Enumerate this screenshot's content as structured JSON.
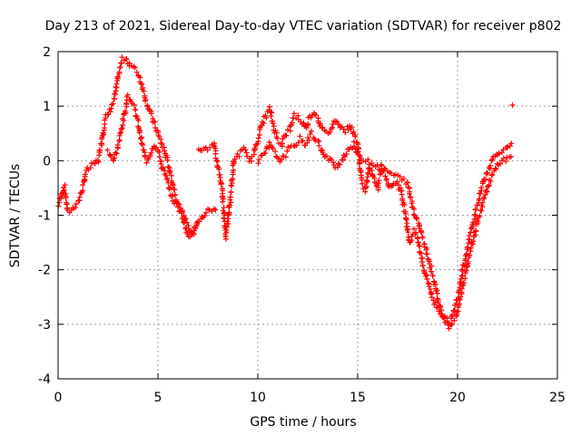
{
  "chart_data": {
    "type": "scatter",
    "title": "Day 213 of 2021, Sidereal Day-to-day VTEC variation (SDTVAR) for receiver p802",
    "xlabel": "GPS time / hours",
    "ylabel": "SDTVAR / TECUs",
    "xlim": [
      0,
      25
    ],
    "ylim": [
      -4,
      2
    ],
    "x_ticks": [
      0,
      5,
      10,
      15,
      20,
      25
    ],
    "y_ticks": [
      -4,
      -3,
      -2,
      -1,
      0,
      1,
      2
    ],
    "x_tick_labels": [
      "0",
      "5",
      "10",
      "15",
      "20",
      "25"
    ],
    "y_tick_labels": [
      "-4",
      "-3",
      "-2",
      "-1",
      "0",
      "1",
      "2"
    ],
    "grid": true,
    "marker": "+",
    "marker_color": "#ff0000",
    "series": [
      {
        "name": "SDTVAR",
        "trace_a": [
          [
            0.0,
            -0.85
          ],
          [
            0.2,
            -0.6
          ],
          [
            0.3,
            -0.45
          ],
          [
            0.5,
            -0.95
          ],
          [
            0.8,
            -0.85
          ],
          [
            1.0,
            -0.75
          ],
          [
            1.2,
            -0.55
          ],
          [
            1.4,
            -0.2
          ],
          [
            1.7,
            -0.1
          ],
          [
            2.0,
            0.0
          ],
          [
            2.2,
            0.4
          ],
          [
            2.4,
            0.8
          ],
          [
            2.6,
            0.9
          ],
          [
            2.8,
            1.1
          ],
          [
            3.0,
            1.55
          ],
          [
            3.2,
            1.85
          ],
          [
            3.4,
            1.9
          ],
          [
            3.6,
            1.75
          ],
          [
            3.8,
            1.7
          ],
          [
            4.0,
            1.6
          ],
          [
            4.2,
            1.4
          ],
          [
            4.4,
            1.1
          ],
          [
            4.6,
            0.9
          ],
          [
            4.8,
            0.7
          ],
          [
            5.0,
            0.5
          ],
          [
            5.2,
            0.3
          ],
          [
            5.4,
            0.1
          ],
          [
            5.6,
            -0.2
          ],
          [
            5.8,
            -0.5
          ],
          [
            6.0,
            -0.8
          ],
          [
            6.2,
            -1.0
          ],
          [
            6.4,
            -1.25
          ],
          [
            6.6,
            -1.4
          ],
          [
            6.8,
            -1.3
          ],
          [
            7.0,
            -1.15
          ],
          [
            7.2,
            -1.05
          ],
          [
            7.4,
            -0.95
          ],
          [
            7.6,
            -0.9
          ],
          [
            7.8,
            -0.9
          ],
          [
            8.0,
            -0.95
          ]
        ],
        "trace_b": [
          [
            2.5,
            0.2
          ],
          [
            2.8,
            0.0
          ],
          [
            3.0,
            0.3
          ],
          [
            3.2,
            0.6
          ],
          [
            3.5,
            1.2
          ],
          [
            3.8,
            1.0
          ],
          [
            4.0,
            0.7
          ],
          [
            4.2,
            0.3
          ],
          [
            4.4,
            0.0
          ],
          [
            4.6,
            0.1
          ],
          [
            4.8,
            0.3
          ],
          [
            5.0,
            0.2
          ],
          [
            5.2,
            -0.1
          ],
          [
            5.4,
            -0.3
          ],
          [
            5.6,
            -0.55
          ],
          [
            5.8,
            -0.75
          ],
          [
            6.0,
            -0.85
          ],
          [
            6.2,
            -0.9
          ],
          [
            6.4,
            -1.1
          ],
          [
            6.6,
            -1.25
          ],
          [
            6.8,
            -1.3
          ],
          [
            7.0,
            -1.1
          ]
        ],
        "trace_c": [
          [
            7.0,
            0.25
          ],
          [
            7.4,
            0.2
          ],
          [
            7.8,
            0.3
          ],
          [
            8.2,
            -0.5
          ],
          [
            8.4,
            -1.4
          ],
          [
            8.6,
            -0.8
          ],
          [
            8.8,
            0.0
          ],
          [
            9.0,
            0.1
          ],
          [
            9.3,
            0.2
          ],
          [
            9.6,
            0.0
          ],
          [
            9.8,
            0.1
          ],
          [
            10.0,
            0.4
          ],
          [
            10.2,
            0.7
          ],
          [
            10.4,
            0.8
          ],
          [
            10.6,
            0.95
          ],
          [
            10.8,
            0.6
          ],
          [
            11.0,
            0.4
          ],
          [
            11.2,
            0.3
          ],
          [
            11.4,
            0.5
          ],
          [
            11.6,
            0.55
          ],
          [
            11.8,
            0.85
          ],
          [
            12.0,
            0.8
          ],
          [
            12.2,
            0.7
          ],
          [
            12.4,
            0.6
          ],
          [
            12.6,
            0.8
          ],
          [
            12.8,
            0.9
          ],
          [
            13.0,
            0.8
          ],
          [
            13.2,
            0.6
          ],
          [
            13.4,
            0.5
          ],
          [
            13.6,
            0.55
          ],
          [
            13.8,
            0.7
          ],
          [
            14.0,
            0.75
          ],
          [
            14.2,
            0.6
          ],
          [
            14.4,
            0.55
          ],
          [
            14.6,
            0.65
          ],
          [
            14.8,
            0.5
          ],
          [
            15.0,
            0.3
          ],
          [
            15.2,
            -0.4
          ],
          [
            15.4,
            -0.55
          ],
          [
            15.6,
            -0.1
          ],
          [
            15.8,
            -0.3
          ],
          [
            16.0,
            -0.5
          ],
          [
            16.2,
            -0.1
          ],
          [
            16.4,
            -0.25
          ],
          [
            16.6,
            -0.5
          ],
          [
            16.8,
            -0.4
          ],
          [
            17.0,
            -0.4
          ],
          [
            17.2,
            -0.6
          ],
          [
            17.4,
            -1.0
          ],
          [
            17.6,
            -1.5
          ],
          [
            17.8,
            -1.3
          ],
          [
            18.0,
            -1.4
          ],
          [
            18.2,
            -1.8
          ],
          [
            18.4,
            -2.1
          ],
          [
            18.6,
            -2.3
          ],
          [
            18.8,
            -2.6
          ],
          [
            19.0,
            -2.7
          ],
          [
            19.2,
            -2.8
          ],
          [
            19.4,
            -2.9
          ],
          [
            19.6,
            -3.0
          ],
          [
            19.8,
            -2.8
          ],
          [
            20.0,
            -2.5
          ],
          [
            20.2,
            -2.1
          ],
          [
            20.4,
            -1.75
          ],
          [
            20.6,
            -1.4
          ],
          [
            20.8,
            -1.1
          ],
          [
            21.0,
            -0.8
          ],
          [
            21.2,
            -0.5
          ],
          [
            21.4,
            -0.3
          ],
          [
            21.6,
            -0.1
          ],
          [
            21.8,
            0.05
          ],
          [
            22.0,
            0.15
          ],
          [
            22.2,
            0.2
          ],
          [
            22.4,
            0.2
          ],
          [
            22.6,
            0.3
          ],
          [
            22.8,
            0.35
          ]
        ],
        "trace_d": [
          [
            10.0,
            0.0
          ],
          [
            10.3,
            0.1
          ],
          [
            10.6,
            0.3
          ],
          [
            10.9,
            0.1
          ],
          [
            11.2,
            0.0
          ],
          [
            11.5,
            0.2
          ],
          [
            11.8,
            0.25
          ],
          [
            12.1,
            0.4
          ],
          [
            12.4,
            0.3
          ],
          [
            12.7,
            0.5
          ],
          [
            13.0,
            0.35
          ],
          [
            13.3,
            0.1
          ],
          [
            13.6,
            0.0
          ],
          [
            13.9,
            -0.1
          ],
          [
            14.2,
            0.0
          ],
          [
            14.5,
            0.2
          ],
          [
            14.8,
            0.3
          ],
          [
            15.0,
            0.1
          ],
          [
            17.5,
            -0.4
          ],
          [
            17.8,
            -0.9
          ],
          [
            18.1,
            -1.2
          ],
          [
            18.4,
            -1.6
          ],
          [
            18.7,
            -2.0
          ],
          [
            19.0,
            -2.5
          ],
          [
            19.3,
            -2.9
          ],
          [
            19.6,
            -3.05
          ],
          [
            19.9,
            -2.9
          ],
          [
            20.2,
            -2.4
          ],
          [
            20.5,
            -1.9
          ],
          [
            20.8,
            -1.4
          ],
          [
            21.1,
            -1.0
          ],
          [
            21.4,
            -0.6
          ],
          [
            21.7,
            -0.3
          ],
          [
            22.0,
            -0.1
          ],
          [
            22.3,
            0.0
          ],
          [
            22.6,
            0.05
          ],
          [
            22.8,
            0.0
          ]
        ],
        "isolated_points": [
          [
            22.75,
            1.02
          ]
        ]
      }
    ]
  }
}
